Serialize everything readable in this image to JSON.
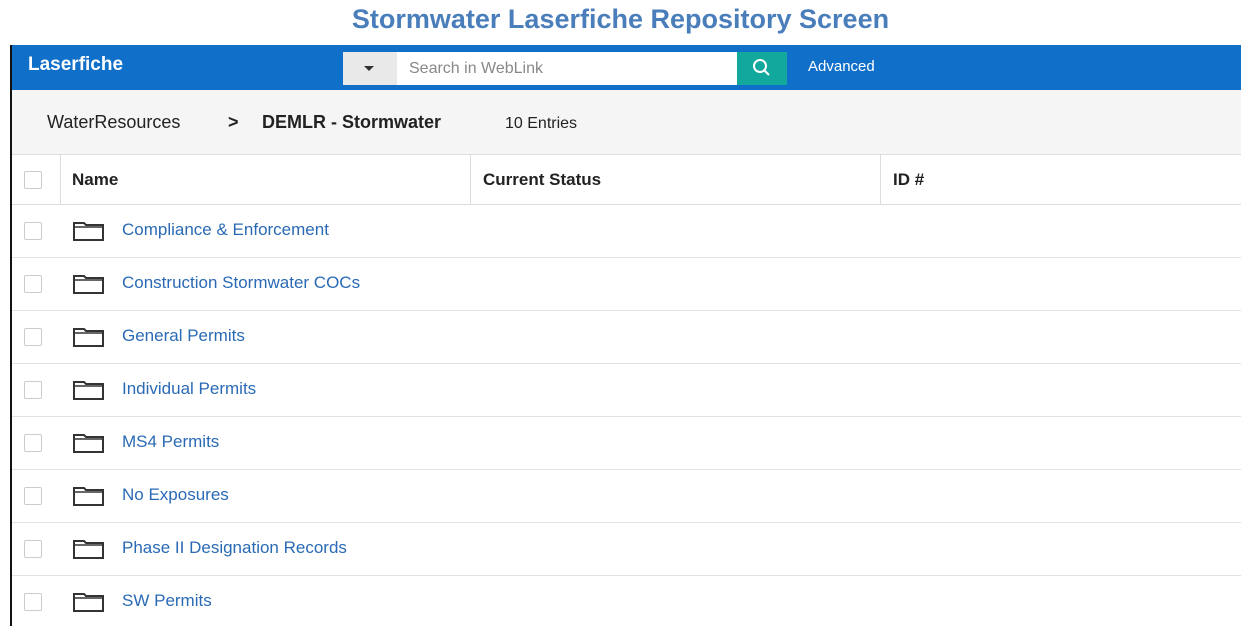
{
  "title": "Stormwater Laserfiche Repository Screen",
  "navbar": {
    "logo": "Laserfiche",
    "search_placeholder": "Search in WebLink",
    "advanced": "Advanced"
  },
  "breadcrumb": {
    "parent": "WaterResources",
    "separator": ">",
    "current": "DEMLR - Stormwater",
    "entries": "10 Entries"
  },
  "table": {
    "columns": [
      "Name",
      "Current Status",
      "ID #"
    ],
    "rows": [
      "Compliance & Enforcement",
      "Construction Stormwater COCs",
      "General Permits",
      "Individual Permits",
      "MS4 Permits",
      "No Exposures",
      "Phase II Designation Records",
      "SW Permits"
    ]
  }
}
